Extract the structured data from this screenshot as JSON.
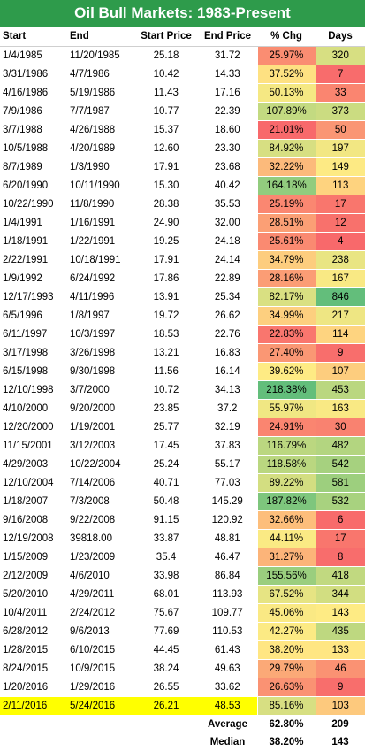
{
  "title": "Oil Bull Markets: 1983-Present",
  "headers": [
    "Start",
    "End",
    "Start Price",
    "End Price",
    "% Chg",
    "Days"
  ],
  "rows": [
    [
      "1/4/1985",
      "11/20/1985",
      "25.18",
      "31.72",
      "25.97%",
      "320"
    ],
    [
      "3/31/1986",
      "4/7/1986",
      "10.42",
      "14.33",
      "37.52%",
      "7"
    ],
    [
      "4/16/1986",
      "5/19/1986",
      "11.43",
      "17.16",
      "50.13%",
      "33"
    ],
    [
      "7/9/1986",
      "7/7/1987",
      "10.77",
      "22.39",
      "107.89%",
      "373"
    ],
    [
      "3/7/1988",
      "4/26/1988",
      "15.37",
      "18.60",
      "21.01%",
      "50"
    ],
    [
      "10/5/1988",
      "4/20/1989",
      "12.60",
      "23.30",
      "84.92%",
      "197"
    ],
    [
      "8/7/1989",
      "1/3/1990",
      "17.91",
      "23.68",
      "32.22%",
      "149"
    ],
    [
      "6/20/1990",
      "10/11/1990",
      "15.30",
      "40.42",
      "164.18%",
      "113"
    ],
    [
      "10/22/1990",
      "11/8/1990",
      "28.38",
      "35.53",
      "25.19%",
      "17"
    ],
    [
      "1/4/1991",
      "1/16/1991",
      "24.90",
      "32.00",
      "28.51%",
      "12"
    ],
    [
      "1/18/1991",
      "1/22/1991",
      "19.25",
      "24.18",
      "25.61%",
      "4"
    ],
    [
      "2/22/1991",
      "10/18/1991",
      "17.91",
      "24.14",
      "34.79%",
      "238"
    ],
    [
      "1/9/1992",
      "6/24/1992",
      "17.86",
      "22.89",
      "28.16%",
      "167"
    ],
    [
      "12/17/1993",
      "4/11/1996",
      "13.91",
      "25.34",
      "82.17%",
      "846"
    ],
    [
      "6/5/1996",
      "1/8/1997",
      "19.72",
      "26.62",
      "34.99%",
      "217"
    ],
    [
      "6/11/1997",
      "10/3/1997",
      "18.53",
      "22.76",
      "22.83%",
      "114"
    ],
    [
      "3/17/1998",
      "3/26/1998",
      "13.21",
      "16.83",
      "27.40%",
      "9"
    ],
    [
      "6/15/1998",
      "9/30/1998",
      "11.56",
      "16.14",
      "39.62%",
      "107"
    ],
    [
      "12/10/1998",
      "3/7/2000",
      "10.72",
      "34.13",
      "218.38%",
      "453"
    ],
    [
      "4/10/2000",
      "9/20/2000",
      "23.85",
      "37.2",
      "55.97%",
      "163"
    ],
    [
      "12/20/2000",
      "1/19/2001",
      "25.77",
      "32.19",
      "24.91%",
      "30"
    ],
    [
      "11/15/2001",
      "3/12/2003",
      "17.45",
      "37.83",
      "116.79%",
      "482"
    ],
    [
      "4/29/2003",
      "10/22/2004",
      "25.24",
      "55.17",
      "118.58%",
      "542"
    ],
    [
      "12/10/2004",
      "7/14/2006",
      "40.71",
      "77.03",
      "89.22%",
      "581"
    ],
    [
      "1/18/2007",
      "7/3/2008",
      "50.48",
      "145.29",
      "187.82%",
      "532"
    ],
    [
      "9/16/2008",
      "9/22/2008",
      "91.15",
      "120.92",
      "32.66%",
      "6"
    ],
    [
      "12/19/2008",
      "39818.00",
      "33.87",
      "48.81",
      "44.11%",
      "17"
    ],
    [
      "1/15/2009",
      "1/23/2009",
      "35.4",
      "46.47",
      "31.27%",
      "8"
    ],
    [
      "2/12/2009",
      "4/6/2010",
      "33.98",
      "86.84",
      "155.56%",
      "418"
    ],
    [
      "5/20/2010",
      "4/29/2011",
      "68.01",
      "113.93",
      "67.52%",
      "344"
    ],
    [
      "10/4/2011",
      "2/24/2012",
      "75.67",
      "109.77",
      "45.06%",
      "143"
    ],
    [
      "6/28/2012",
      "9/6/2013",
      "77.69",
      "110.53",
      "42.27%",
      "435"
    ],
    [
      "1/28/2015",
      "6/10/2015",
      "44.45",
      "61.43",
      "38.20%",
      "133"
    ],
    [
      "8/24/2015",
      "10/9/2015",
      "38.24",
      "49.63",
      "29.79%",
      "46"
    ],
    [
      "1/20/2016",
      "1/29/2016",
      "26.55",
      "33.62",
      "26.63%",
      "9"
    ],
    [
      "2/11/2016",
      "5/24/2016",
      "26.21",
      "48.53",
      "85.16%",
      "103"
    ]
  ],
  "highlight_row_index": 35,
  "summary": [
    {
      "label": "Average",
      "pct": "62.80%",
      "days": "209"
    },
    {
      "label": "Median",
      "pct": "38.20%",
      "days": "143"
    }
  ],
  "colors": {
    "title_bg": "#2e9b4b",
    "highlight_row": "#ffff00",
    "scale_low": "#f8696b",
    "scale_mid": "#ffeb84",
    "scale_high": "#63be7b"
  }
}
